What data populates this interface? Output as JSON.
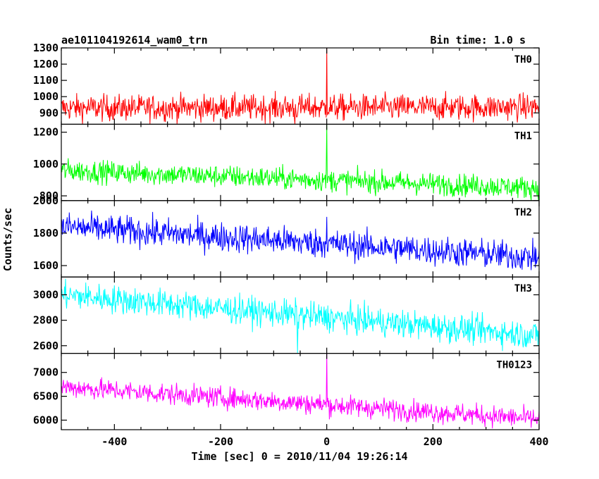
{
  "chart_data": {
    "type": "line",
    "title": "ae101104192614_wam0_trn",
    "bin_time": "Bin time: 1.0 s",
    "xlabel": "Time [sec] 0 = 2010/11/04 19:26:14",
    "ylabel": "Counts/sec",
    "xlim": [
      -500,
      400
    ],
    "x_ticks": [
      -400,
      -200,
      0,
      200,
      400
    ],
    "grid": false,
    "panels": [
      {
        "name": "TH0",
        "color": "#ff0000",
        "ylim": [
          830,
          1300
        ],
        "y_ticks": [
          900,
          1000,
          1100,
          1200,
          1300
        ],
        "start_mean": 930,
        "end_mean": 935,
        "noise": 40,
        "spike_x": 0,
        "spike_value": 1300,
        "dip_x": -60,
        "dip_value": 830
      },
      {
        "name": "TH1",
        "color": "#00ff00",
        "ylim": [
          770,
          1250
        ],
        "y_ticks": [
          800,
          1000,
          1200
        ],
        "start_mean": 960,
        "end_mean": 850,
        "noise": 35,
        "spike_x": 0,
        "spike_value": 1250,
        "dip_x": null,
        "dip_value": null
      },
      {
        "name": "TH2",
        "color": "#0000ff",
        "ylim": [
          1530,
          2000
        ],
        "y_ticks": [
          1600,
          1800,
          2000
        ],
        "start_mean": 1840,
        "end_mean": 1650,
        "noise": 45,
        "spike_x": 0,
        "spike_value": 1900,
        "dip_x": null,
        "dip_value": null
      },
      {
        "name": "TH3",
        "color": "#00ffff",
        "ylim": [
          2540,
          3140
        ],
        "y_ticks": [
          2600,
          2800,
          3000
        ],
        "start_mean": 3000,
        "end_mean": 2680,
        "noise": 55,
        "spike_x": null,
        "spike_value": null,
        "dip_x": -55,
        "dip_value": 2540
      },
      {
        "name": "TH0123",
        "color": "#ff00ff",
        "ylim": [
          5800,
          7400
        ],
        "y_ticks": [
          6000,
          6500,
          7000
        ],
        "start_mean": 6700,
        "end_mean": 6020,
        "noise": 110,
        "spike_x": 0,
        "spike_value": 7400,
        "dip_x": null,
        "dip_value": null
      }
    ]
  }
}
